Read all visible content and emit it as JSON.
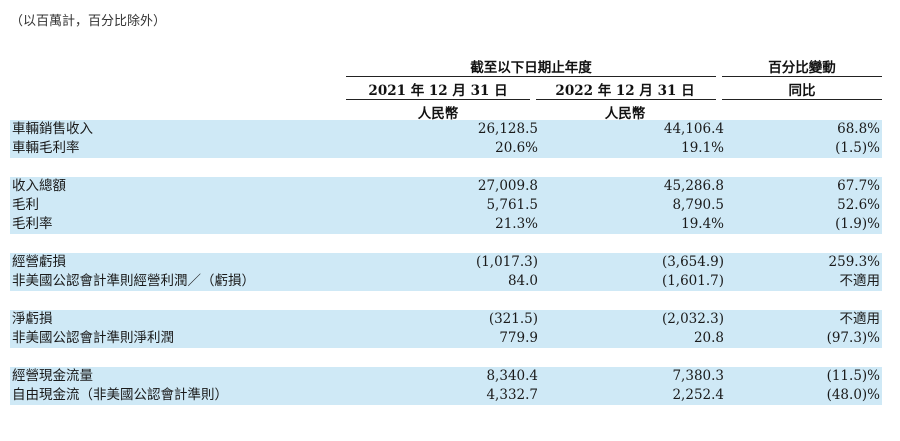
{
  "note": "（以百萬計，百分比除外）",
  "header": {
    "period_group": "截至以下日期止年度",
    "change_group": "百分比變動",
    "col_2021": "2021 年 12 月 31 日",
    "col_2022": "2022 年 12 月 31 日",
    "col_yoy": "同比",
    "currency_2021": "人民幣",
    "currency_2022": "人民幣"
  },
  "rows": [
    {
      "label": "車輛銷售收入",
      "y2021": "26,128.5",
      "y2022": "44,106.4",
      "change": "68.8%"
    },
    {
      "label": "車輛毛利率",
      "y2021": "20.6%",
      "y2022": "19.1%",
      "change": "(1.5)%"
    },
    {
      "label": "",
      "y2021": "",
      "y2022": "",
      "change": ""
    },
    {
      "label": "收入總額",
      "y2021": "27,009.8",
      "y2022": "45,286.8",
      "change": "67.7%"
    },
    {
      "label": "毛利",
      "y2021": "5,761.5",
      "y2022": "8,790.5",
      "change": "52.6%"
    },
    {
      "label": "毛利率",
      "y2021": "21.3%",
      "y2022": "19.4%",
      "change": "(1.9)%"
    },
    {
      "label": "",
      "y2021": "",
      "y2022": "",
      "change": ""
    },
    {
      "label": "經營虧損",
      "y2021": "(1,017.3)",
      "y2022": "(3,654.9)",
      "change": "259.3%"
    },
    {
      "label": "非美國公認會計準則經營利潤／（虧損）",
      "y2021": "84.0",
      "y2022": "(1,601.7)",
      "change": "不適用"
    },
    {
      "label": "",
      "y2021": "",
      "y2022": "",
      "change": ""
    },
    {
      "label": "淨虧損",
      "y2021": "(321.5)",
      "y2022": "(2,032.3)",
      "change": "不適用"
    },
    {
      "label": "非美國公認會計準則淨利潤",
      "y2021": "779.9",
      "y2022": "20.8",
      "change": "(97.3)%"
    },
    {
      "label": "",
      "y2021": "",
      "y2022": "",
      "change": ""
    },
    {
      "label": "經營現金流量",
      "y2021": "8,340.4",
      "y2022": "7,380.3",
      "change": "(11.5)%"
    },
    {
      "label": "自由現金流（非美國公認會計準則）",
      "y2021": "4,332.7",
      "y2022": "2,252.4",
      "change": "(48.0)%"
    }
  ]
}
